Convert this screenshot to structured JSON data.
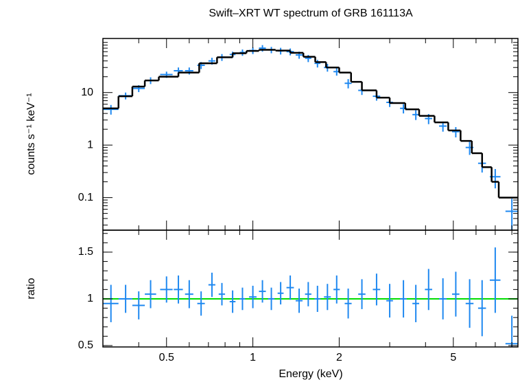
{
  "chart_data": [
    {
      "type": "errorbar",
      "title": "Swift–XRT WT spectrum of GRB 161113A",
      "ylabel": "counts s⁻¹ keV⁻¹",
      "xlog": true,
      "ylog": true,
      "xlim": [
        0.3,
        8.4
      ],
      "ylim": [
        0.024,
        107
      ],
      "xticks": [
        0.5,
        1,
        2,
        5
      ],
      "xminor": [
        0.3,
        0.4,
        0.6,
        0.7,
        0.8,
        0.9,
        3,
        4,
        6,
        7,
        8
      ],
      "yticks": [
        0.1,
        1,
        10
      ],
      "data": {
        "color": "#1e88f0",
        "x": [
          0.32,
          0.36,
          0.4,
          0.44,
          0.5,
          0.55,
          0.6,
          0.66,
          0.72,
          0.78,
          0.85,
          0.92,
          1.0,
          1.08,
          1.16,
          1.25,
          1.35,
          1.45,
          1.56,
          1.68,
          1.82,
          1.96,
          2.15,
          2.4,
          2.7,
          3.0,
          3.35,
          3.7,
          4.1,
          4.6,
          5.1,
          5.7,
          6.3,
          7.0,
          8.0
        ],
        "xerr": [
          0.02,
          0.02,
          0.02,
          0.02,
          0.025,
          0.02,
          0.02,
          0.02,
          0.02,
          0.02,
          0.02,
          0.02,
          0.03,
          0.03,
          0.03,
          0.03,
          0.04,
          0.04,
          0.04,
          0.04,
          0.05,
          0.05,
          0.06,
          0.07,
          0.08,
          0.08,
          0.09,
          0.1,
          0.12,
          0.14,
          0.15,
          0.18,
          0.2,
          0.3,
          0.4
        ],
        "y": [
          4.8,
          8.7,
          12,
          17,
          22,
          26,
          26,
          33,
          40,
          47,
          53,
          58,
          63,
          70,
          65,
          62,
          60,
          52,
          45,
          36,
          30,
          25,
          15,
          11,
          8.5,
          6.5,
          5,
          3.8,
          3.2,
          2.3,
          1.8,
          0.9,
          0.45,
          0.25,
          0.055
        ],
        "yerr": [
          1,
          1.3,
          1.8,
          2.5,
          3,
          4,
          4,
          5,
          6,
          7,
          7,
          8,
          9,
          10,
          9,
          9,
          9,
          8,
          7,
          6,
          5,
          4,
          3,
          2,
          1.5,
          1.2,
          1,
          0.8,
          0.7,
          0.5,
          0.4,
          0.25,
          0.15,
          0.1,
          0.04
        ]
      },
      "model": {
        "color": "#000000",
        "bins": [
          0.3,
          0.34,
          0.38,
          0.42,
          0.47,
          0.55,
          0.65,
          0.75,
          0.85,
          0.95,
          1.05,
          1.2,
          1.35,
          1.5,
          1.65,
          1.8,
          2.0,
          2.2,
          2.4,
          2.7,
          3.0,
          3.4,
          3.8,
          4.3,
          4.8,
          5.3,
          5.8,
          6.3,
          6.8,
          7.2,
          8.4
        ],
        "values": [
          5,
          8.5,
          13,
          17,
          20,
          24,
          36,
          47,
          56,
          62,
          65,
          63,
          57,
          48,
          38,
          30,
          24,
          16,
          11,
          8,
          6.3,
          4.8,
          3.6,
          2.7,
          1.9,
          1.2,
          0.7,
          0.38,
          0.2,
          0.1
        ]
      }
    },
    {
      "type": "errorbar",
      "ylabel": "ratio",
      "xlabel": "Energy (keV)",
      "xlog": true,
      "ylog": false,
      "xlim": [
        0.3,
        8.4
      ],
      "ylim": [
        0.485,
        1.735
      ],
      "xticks": [
        0.5,
        1,
        2,
        5
      ],
      "xminor": [
        0.3,
        0.4,
        0.6,
        0.7,
        0.8,
        0.9,
        3,
        4,
        6,
        7,
        8
      ],
      "yticks": [
        0.5,
        1,
        1.5
      ],
      "reference": 1,
      "reference_color": "#00dd00",
      "data": {
        "color": "#1e88f0",
        "x": [
          0.32,
          0.36,
          0.4,
          0.44,
          0.5,
          0.55,
          0.6,
          0.66,
          0.72,
          0.78,
          0.85,
          0.92,
          1.0,
          1.08,
          1.16,
          1.25,
          1.35,
          1.45,
          1.56,
          1.68,
          1.82,
          1.96,
          2.15,
          2.4,
          2.7,
          3.0,
          3.35,
          3.7,
          4.1,
          4.6,
          5.1,
          5.7,
          6.3,
          7.0,
          8.0
        ],
        "xerr": [
          0.02,
          0.02,
          0.02,
          0.02,
          0.025,
          0.02,
          0.02,
          0.02,
          0.02,
          0.02,
          0.02,
          0.02,
          0.03,
          0.03,
          0.03,
          0.03,
          0.04,
          0.04,
          0.04,
          0.04,
          0.05,
          0.05,
          0.06,
          0.07,
          0.08,
          0.08,
          0.09,
          0.1,
          0.12,
          0.14,
          0.15,
          0.18,
          0.2,
          0.3,
          0.4
        ],
        "y": [
          0.95,
          1.0,
          0.93,
          1.05,
          1.1,
          1.1,
          1.05,
          0.95,
          1.15,
          1.05,
          0.97,
          1.0,
          1.02,
          1.08,
          1.0,
          1.06,
          1.12,
          0.98,
          1.05,
          1.0,
          1.02,
          1.1,
          0.95,
          1.05,
          1.1,
          0.98,
          1.0,
          0.95,
          1.1,
          1.0,
          1.05,
          0.95,
          0.9,
          1.2,
          0.52
        ],
        "yerr": [
          0.2,
          0.15,
          0.15,
          0.15,
          0.14,
          0.15,
          0.15,
          0.13,
          0.13,
          0.12,
          0.12,
          0.12,
          0.12,
          0.12,
          0.12,
          0.12,
          0.13,
          0.13,
          0.13,
          0.14,
          0.14,
          0.15,
          0.16,
          0.16,
          0.17,
          0.18,
          0.2,
          0.2,
          0.22,
          0.22,
          0.24,
          0.26,
          0.3,
          0.35,
          0.3
        ]
      }
    }
  ]
}
